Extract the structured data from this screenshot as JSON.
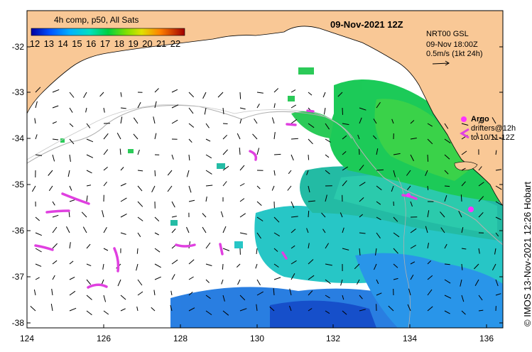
{
  "colorbar": {
    "title": "4h comp, p50, All Sats",
    "ticks": [
      "12",
      "13",
      "14",
      "15",
      "16",
      "17",
      "18",
      "19",
      "20",
      "21",
      "22"
    ]
  },
  "map_title": "09-Nov-2021 12Z",
  "current_info": {
    "line1": "NRT00 GSL",
    "line2": "09-Nov 18:00Z",
    "line3": "0.5m/s (1kt 24h)"
  },
  "legend": {
    "argo_label": "Argo",
    "drifters_line1": "drifters@12h",
    "drifters_line2": "to 10/11-12Z"
  },
  "credit": "© IMOS 13-Nov-2021 12:26 Hobart",
  "axes": {
    "y_ticks": [
      "-32",
      "-33",
      "-34",
      "-35",
      "-36",
      "-37",
      "-38"
    ],
    "x_ticks": [
      "124",
      "126",
      "128",
      "130",
      "132",
      "134",
      "136"
    ]
  },
  "colors": {
    "land": "#f9c896",
    "ocean_bg": "#ffffff",
    "argo": "#ff33ff",
    "track": "#e040e0",
    "contour": "#b0b0b0",
    "arrow": "#000000"
  }
}
